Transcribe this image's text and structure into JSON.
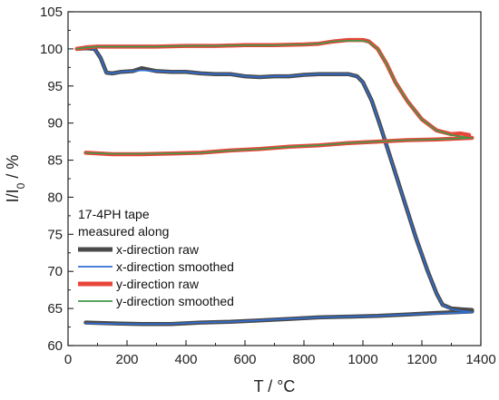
{
  "chart_data": {
    "type": "line",
    "xlabel": "T / °C",
    "ylabel": "I/I0 / %",
    "ylabel_parts": {
      "main": "I/I",
      "sub": "0",
      "rest": " / %"
    },
    "xlim": [
      0,
      1400
    ],
    "ylim": [
      60,
      105
    ],
    "x_ticks": [
      0,
      200,
      400,
      600,
      800,
      1000,
      1200,
      1400
    ],
    "y_ticks": [
      60,
      65,
      70,
      75,
      80,
      85,
      90,
      95,
      100,
      105
    ],
    "grid": false,
    "legend": {
      "position": "bottom-left",
      "title_lines": [
        "17-4PH tape",
        "measured along"
      ]
    },
    "series": [
      {
        "name": "x-direction raw",
        "color": "#4a4a4a",
        "segments": [
          [
            [
              30,
              100
            ],
            [
              60,
              100.1
            ],
            [
              90,
              100
            ],
            [
              110,
              98.8
            ],
            [
              130,
              96.8
            ],
            [
              150,
              96.7
            ],
            [
              180,
              96.9
            ],
            [
              220,
              97.0
            ],
            [
              250,
              97.4
            ],
            [
              300,
              97.0
            ],
            [
              350,
              96.9
            ],
            [
              400,
              96.9
            ],
            [
              450,
              96.7
            ],
            [
              500,
              96.6
            ],
            [
              550,
              96.6
            ],
            [
              600,
              96.3
            ],
            [
              650,
              96.2
            ],
            [
              700,
              96.3
            ],
            [
              750,
              96.3
            ],
            [
              800,
              96.5
            ],
            [
              850,
              96.6
            ],
            [
              900,
              96.6
            ],
            [
              950,
              96.6
            ],
            [
              980,
              96.3
            ],
            [
              1000,
              95.5
            ],
            [
              1030,
              93.0
            ],
            [
              1060,
              89.5
            ],
            [
              1100,
              84.5
            ],
            [
              1140,
              79.5
            ],
            [
              1180,
              74.5
            ],
            [
              1220,
              70.0
            ],
            [
              1250,
              67.0
            ],
            [
              1270,
              65.5
            ],
            [
              1300,
              65.0
            ],
            [
              1330,
              64.9
            ],
            [
              1370,
              64.8
            ]
          ],
          [
            [
              60,
              63.1
            ],
            [
              150,
              63.0
            ],
            [
              250,
              62.9
            ],
            [
              350,
              62.9
            ],
            [
              450,
              63.1
            ],
            [
              550,
              63.2
            ],
            [
              650,
              63.4
            ],
            [
              750,
              63.6
            ],
            [
              850,
              63.8
            ],
            [
              950,
              63.9
            ],
            [
              1050,
              64.0
            ],
            [
              1150,
              64.2
            ],
            [
              1250,
              64.4
            ],
            [
              1370,
              64.6
            ]
          ]
        ]
      },
      {
        "name": "x-direction smoothed",
        "color": "#2f6fd6",
        "segments": [
          [
            [
              30,
              100
            ],
            [
              60,
              100.1
            ],
            [
              90,
              100
            ],
            [
              110,
              98.8
            ],
            [
              130,
              96.8
            ],
            [
              150,
              96.7
            ],
            [
              180,
              96.9
            ],
            [
              220,
              97.0
            ],
            [
              250,
              97.1
            ],
            [
              300,
              97.0
            ],
            [
              350,
              96.9
            ],
            [
              400,
              96.9
            ],
            [
              450,
              96.7
            ],
            [
              500,
              96.6
            ],
            [
              550,
              96.6
            ],
            [
              600,
              96.3
            ],
            [
              650,
              96.2
            ],
            [
              700,
              96.3
            ],
            [
              750,
              96.3
            ],
            [
              800,
              96.5
            ],
            [
              850,
              96.6
            ],
            [
              900,
              96.6
            ],
            [
              950,
              96.6
            ],
            [
              980,
              96.3
            ],
            [
              1000,
              95.5
            ],
            [
              1030,
              93.0
            ],
            [
              1060,
              89.5
            ],
            [
              1100,
              84.5
            ],
            [
              1140,
              79.5
            ],
            [
              1180,
              74.5
            ],
            [
              1220,
              70.0
            ],
            [
              1250,
              67.0
            ],
            [
              1270,
              65.5
            ],
            [
              1300,
              64.9
            ],
            [
              1330,
              64.7
            ],
            [
              1370,
              64.5
            ]
          ],
          [
            [
              60,
              63.0
            ],
            [
              150,
              62.95
            ],
            [
              250,
              62.9
            ],
            [
              350,
              62.95
            ],
            [
              450,
              63.1
            ],
            [
              550,
              63.2
            ],
            [
              650,
              63.4
            ],
            [
              750,
              63.6
            ],
            [
              850,
              63.8
            ],
            [
              950,
              63.9
            ],
            [
              1050,
              64.0
            ],
            [
              1150,
              64.2
            ],
            [
              1250,
              64.3
            ],
            [
              1370,
              64.5
            ]
          ]
        ]
      },
      {
        "name": "y-direction raw",
        "color": "#e8463a",
        "segments": [
          [
            [
              30,
              100
            ],
            [
              60,
              100.2
            ],
            [
              100,
              100.3
            ],
            [
              200,
              100.3
            ],
            [
              300,
              100.3
            ],
            [
              400,
              100.4
            ],
            [
              500,
              100.4
            ],
            [
              600,
              100.5
            ],
            [
              700,
              100.5
            ],
            [
              800,
              100.6
            ],
            [
              850,
              100.7
            ],
            [
              900,
              101.0
            ],
            [
              950,
              101.2
            ],
            [
              1000,
              101.2
            ],
            [
              1020,
              101.0
            ],
            [
              1050,
              100.0
            ],
            [
              1080,
              98.0
            ],
            [
              1110,
              95.5
            ],
            [
              1150,
              93.0
            ],
            [
              1200,
              90.5
            ],
            [
              1250,
              89.0
            ],
            [
              1300,
              88.5
            ],
            [
              1330,
              88.6
            ],
            [
              1360,
              88.4
            ]
          ],
          [
            [
              60,
              86.0
            ],
            [
              150,
              85.8
            ],
            [
              250,
              85.8
            ],
            [
              350,
              85.9
            ],
            [
              450,
              86.0
            ],
            [
              550,
              86.3
            ],
            [
              650,
              86.5
            ],
            [
              750,
              86.8
            ],
            [
              850,
              87.0
            ],
            [
              950,
              87.3
            ],
            [
              1050,
              87.5
            ],
            [
              1150,
              87.7
            ],
            [
              1250,
              87.8
            ],
            [
              1370,
              88.0
            ]
          ]
        ]
      },
      {
        "name": "y-direction smoothed",
        "color": "#3f9a4a",
        "segments": [
          [
            [
              30,
              100
            ],
            [
              60,
              100.2
            ],
            [
              100,
              100.3
            ],
            [
              200,
              100.3
            ],
            [
              300,
              100.3
            ],
            [
              400,
              100.4
            ],
            [
              500,
              100.4
            ],
            [
              600,
              100.5
            ],
            [
              700,
              100.5
            ],
            [
              800,
              100.6
            ],
            [
              850,
              100.7
            ],
            [
              900,
              101.0
            ],
            [
              950,
              101.1
            ],
            [
              1000,
              101.1
            ],
            [
              1020,
              100.9
            ],
            [
              1050,
              100.0
            ],
            [
              1080,
              98.0
            ],
            [
              1110,
              95.5
            ],
            [
              1150,
              93.0
            ],
            [
              1200,
              90.5
            ],
            [
              1250,
              89.0
            ],
            [
              1300,
              88.4
            ],
            [
              1330,
              88.2
            ],
            [
              1360,
              88.0
            ]
          ],
          [
            [
              60,
              86.0
            ],
            [
              150,
              85.85
            ],
            [
              250,
              85.85
            ],
            [
              350,
              85.9
            ],
            [
              450,
              86.0
            ],
            [
              550,
              86.3
            ],
            [
              650,
              86.5
            ],
            [
              750,
              86.8
            ],
            [
              850,
              87.0
            ],
            [
              950,
              87.3
            ],
            [
              1050,
              87.5
            ],
            [
              1150,
              87.7
            ],
            [
              1250,
              87.8
            ],
            [
              1370,
              88.0
            ]
          ]
        ]
      }
    ]
  }
}
